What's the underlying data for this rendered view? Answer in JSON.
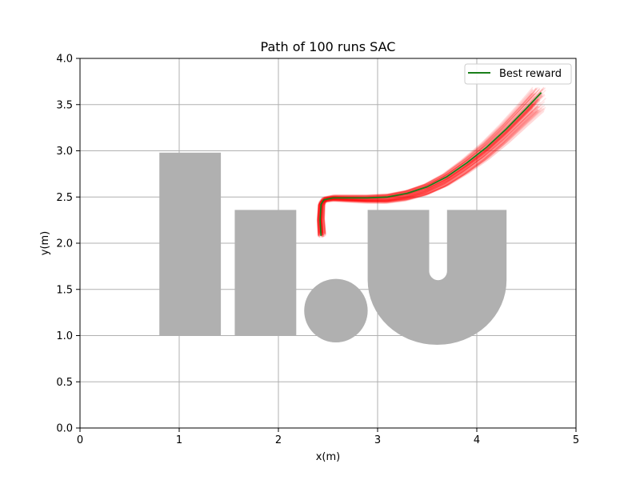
{
  "chart_data": {
    "type": "line",
    "title": "Path of 100 runs SAC",
    "xlabel": "x(m)",
    "ylabel": "y(m)",
    "xlim": [
      0,
      5
    ],
    "ylim": [
      0,
      4
    ],
    "xticks": [
      0,
      1,
      2,
      3,
      4,
      5
    ],
    "yticks": [
      0.0,
      0.5,
      1.0,
      1.5,
      2.0,
      2.5,
      3.0,
      3.5,
      4.0
    ],
    "xtick_labels": [
      "0",
      "1",
      "2",
      "3",
      "4",
      "5"
    ],
    "ytick_labels": [
      "0.0",
      "0.5",
      "1.0",
      "1.5",
      "2.0",
      "2.5",
      "3.0",
      "3.5",
      "4.0"
    ],
    "grid": true,
    "legend_position": "top-right",
    "colors": {
      "best": "#1a7f1a",
      "runs": "#ff0000",
      "obstacle": "#b0b0b0",
      "grid": "#b0b0b0"
    },
    "obstacles": [
      {
        "shape": "rect",
        "x0": 0.8,
        "x1": 1.42,
        "y0": 1.0,
        "y1": 2.98
      },
      {
        "shape": "rect",
        "x0": 1.56,
        "x1": 2.18,
        "y0": 1.0,
        "y1": 2.36
      },
      {
        "shape": "circle",
        "cx": 2.58,
        "cy": 1.27,
        "r": 0.32
      },
      {
        "shape": "u",
        "x0": 2.9,
        "x1": 4.3,
        "y_top": 2.36,
        "arc_cy": 1.6,
        "outer_r": 0.7,
        "inner_half_width": 0.09,
        "notch_x0": 3.52,
        "notch_x1": 3.7
      }
    ],
    "series": [
      {
        "name": "Best reward",
        "x": [
          2.43,
          2.42,
          2.43,
          2.46,
          2.55,
          2.7,
          2.9,
          3.1,
          3.3,
          3.5,
          3.7,
          3.9,
          4.1,
          4.3,
          4.5,
          4.65
        ],
        "y": [
          2.08,
          2.25,
          2.42,
          2.47,
          2.49,
          2.49,
          2.49,
          2.5,
          2.54,
          2.61,
          2.72,
          2.87,
          3.04,
          3.24,
          3.46,
          3.63
        ]
      }
    ],
    "runs": {
      "count": 100,
      "start_x_range": [
        2.4,
        2.48
      ],
      "start_y_range": [
        2.06,
        2.12
      ],
      "end_x_range": [
        4.55,
        4.7
      ],
      "end_y_range": [
        3.42,
        3.69
      ]
    }
  }
}
